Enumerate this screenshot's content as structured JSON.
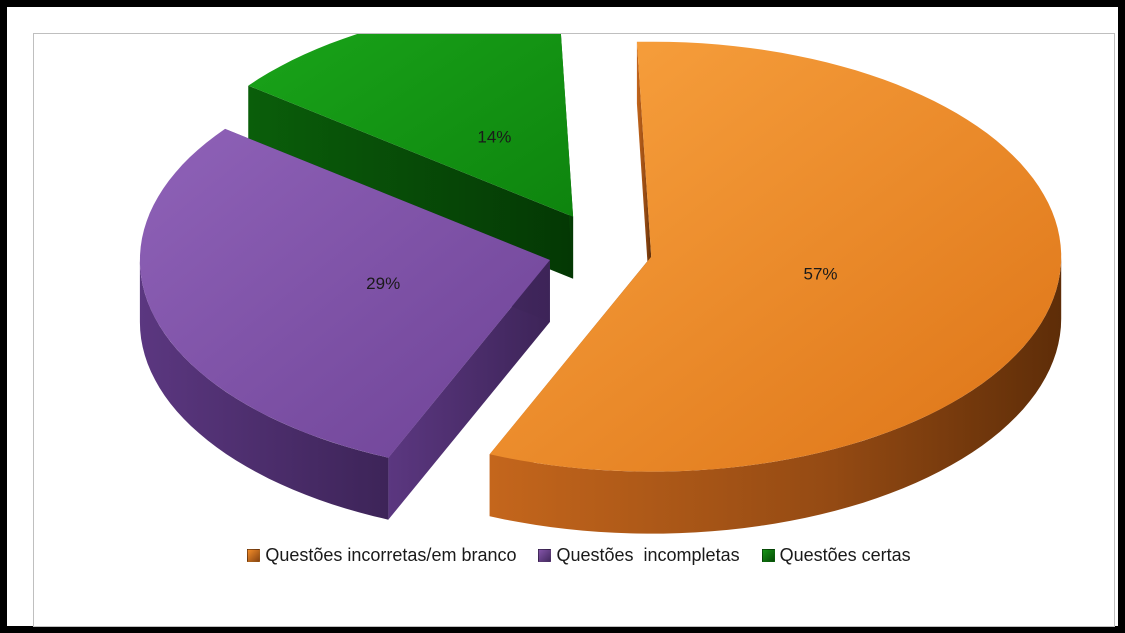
{
  "chart_data": {
    "type": "pie",
    "title": "",
    "three_d": true,
    "exploded": true,
    "legend_position": "bottom",
    "slices": [
      {
        "name": "Questões incorretas/em branco",
        "value": 57,
        "label": "57%",
        "color": "#f28c28",
        "side_color": "#8a4512"
      },
      {
        "name": "Questões  incompletas",
        "value": 29,
        "label": "29%",
        "color": "#8354a8",
        "side_color": "#452a61"
      },
      {
        "name": "Questões certas",
        "value": 14,
        "label": "14%",
        "color": "#159415",
        "side_color": "#064d06"
      }
    ]
  }
}
